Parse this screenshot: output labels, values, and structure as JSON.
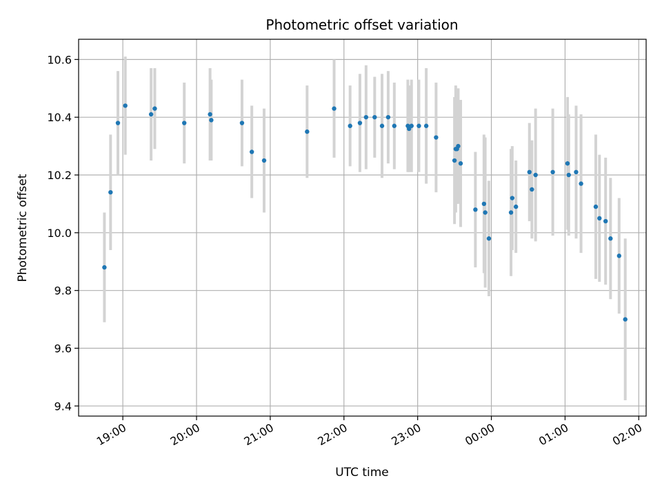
{
  "chart_data": {
    "type": "scatter",
    "title": "Photometric offset variation",
    "xlabel": "UTC time",
    "ylabel": "Photometric offset",
    "x_unit": "UTC time (hours past 00:00 of first day; values >= 24 are next day)",
    "xlim": [
      "18:24",
      "02:06"
    ],
    "ylim": [
      9.365,
      10.67
    ],
    "x_ticks": [
      "19:00",
      "20:00",
      "21:00",
      "22:00",
      "23:00",
      "00:00",
      "01:00",
      "02:00"
    ],
    "y_ticks": [
      "9.4",
      "9.6",
      "9.8",
      "10.0",
      "10.2",
      "10.4",
      "10.6"
    ],
    "grid": true,
    "colors": {
      "points": "#1f77b4",
      "errorbars": "#d3d3d3",
      "grid": "#b0b0b0"
    },
    "points": [
      {
        "x": "18:45",
        "y": 9.88,
        "err": 0.19
      },
      {
        "x": "18:50",
        "y": 10.14,
        "err": 0.2
      },
      {
        "x": "18:56",
        "y": 10.38,
        "err": 0.18
      },
      {
        "x": "19:02",
        "y": 10.44,
        "err": 0.17
      },
      {
        "x": "19:23",
        "y": 10.41,
        "err": 0.16
      },
      {
        "x": "19:26",
        "y": 10.43,
        "err": 0.14
      },
      {
        "x": "19:50",
        "y": 10.38,
        "err": 0.14
      },
      {
        "x": "20:11",
        "y": 10.41,
        "err": 0.16
      },
      {
        "x": "20:12",
        "y": 10.39,
        "err": 0.14
      },
      {
        "x": "20:37",
        "y": 10.38,
        "err": 0.15
      },
      {
        "x": "20:45",
        "y": 10.28,
        "err": 0.16
      },
      {
        "x": "20:55",
        "y": 10.25,
        "err": 0.18
      },
      {
        "x": "21:30",
        "y": 10.35,
        "err": 0.16
      },
      {
        "x": "21:52",
        "y": 10.43,
        "err": 0.17
      },
      {
        "x": "22:05",
        "y": 10.37,
        "err": 0.14
      },
      {
        "x": "22:13",
        "y": 10.38,
        "err": 0.17
      },
      {
        "x": "22:18",
        "y": 10.4,
        "err": 0.18
      },
      {
        "x": "22:25",
        "y": 10.4,
        "err": 0.14
      },
      {
        "x": "22:31",
        "y": 10.37,
        "err": 0.18
      },
      {
        "x": "22:36",
        "y": 10.4,
        "err": 0.16
      },
      {
        "x": "22:41",
        "y": 10.37,
        "err": 0.15
      },
      {
        "x": "22:52",
        "y": 10.37,
        "err": 0.16
      },
      {
        "x": "22:53",
        "y": 10.36,
        "err": 0.15
      },
      {
        "x": "22:55",
        "y": 10.37,
        "err": 0.16
      },
      {
        "x": "23:01",
        "y": 10.37,
        "err": 0.16
      },
      {
        "x": "23:07",
        "y": 10.37,
        "err": 0.2
      },
      {
        "x": "23:15",
        "y": 10.33,
        "err": 0.19
      },
      {
        "x": "23:30",
        "y": 10.25,
        "err": 0.22
      },
      {
        "x": "23:31",
        "y": 10.29,
        "err": 0.22
      },
      {
        "x": "23:32",
        "y": 10.29,
        "err": 0.19
      },
      {
        "x": "23:33",
        "y": 10.3,
        "err": 0.2
      },
      {
        "x": "23:35",
        "y": 10.24,
        "err": 0.22
      },
      {
        "x": "23:47",
        "y": 10.08,
        "err": 0.2
      },
      {
        "x": "23:54",
        "y": 10.1,
        "err": 0.24
      },
      {
        "x": "23:55",
        "y": 10.07,
        "err": 0.26
      },
      {
        "x": "23:58",
        "y": 9.98,
        "err": 0.2
      },
      {
        "x": "00:16",
        "y": 10.07,
        "err": 0.22
      },
      {
        "x": "00:17",
        "y": 10.12,
        "err": 0.18
      },
      {
        "x": "00:20",
        "y": 10.09,
        "err": 0.16
      },
      {
        "x": "00:31",
        "y": 10.21,
        "err": 0.17
      },
      {
        "x": "00:33",
        "y": 10.15,
        "err": 0.17
      },
      {
        "x": "00:36",
        "y": 10.2,
        "err": 0.23
      },
      {
        "x": "00:50",
        "y": 10.21,
        "err": 0.22
      },
      {
        "x": "01:02",
        "y": 10.24,
        "err": 0.23
      },
      {
        "x": "01:03",
        "y": 10.2,
        "err": 0.21
      },
      {
        "x": "01:09",
        "y": 10.21,
        "err": 0.23
      },
      {
        "x": "01:13",
        "y": 10.17,
        "err": 0.24
      },
      {
        "x": "01:25",
        "y": 10.09,
        "err": 0.25
      },
      {
        "x": "01:28",
        "y": 10.05,
        "err": 0.22
      },
      {
        "x": "01:33",
        "y": 10.04,
        "err": 0.22
      },
      {
        "x": "01:37",
        "y": 9.98,
        "err": 0.21
      },
      {
        "x": "01:44",
        "y": 9.92,
        "err": 0.2
      },
      {
        "x": "01:49",
        "y": 9.7,
        "err": 0.28
      }
    ]
  }
}
